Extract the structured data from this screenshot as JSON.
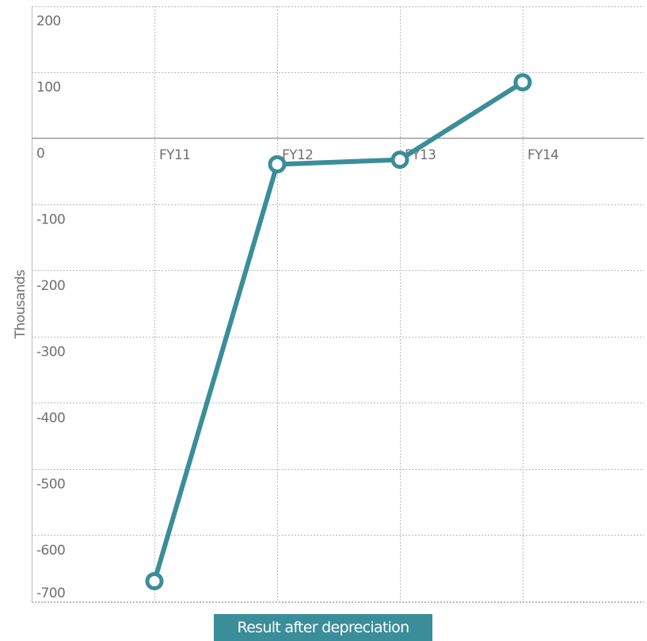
{
  "chart_data": {
    "type": "line",
    "categories": [
      "FY11",
      "FY12",
      "FY13",
      "FY14"
    ],
    "series": [
      {
        "name": "Result after depreciation",
        "values": [
          -670,
          -40,
          -33,
          84
        ],
        "color": "#3b8d9a"
      }
    ],
    "y_ticks": [
      200,
      100,
      0,
      -100,
      -200,
      -300,
      -400,
      -500,
      -600,
      -700
    ],
    "ylim": [
      -700,
      200
    ],
    "ylabel": "Thousands",
    "xlabel": "",
    "grid": true,
    "legend_position": "bottom-center"
  }
}
